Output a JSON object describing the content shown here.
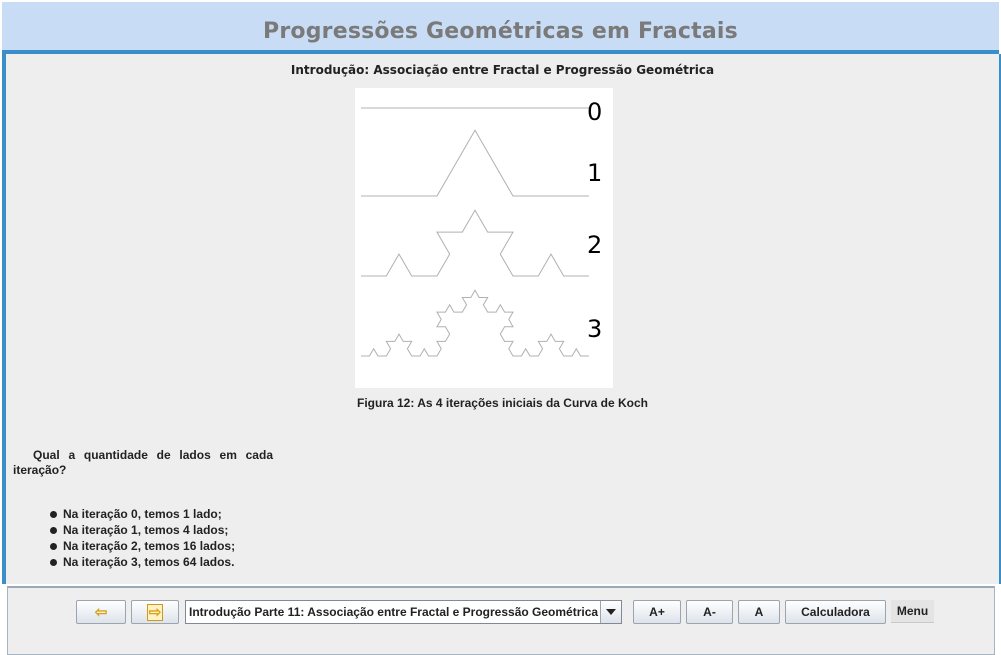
{
  "header": {
    "title": "Progressões Geométricas em Fractais"
  },
  "main": {
    "subtitle": "Introdução: Associação entre Fractal e Progressão Geométrica",
    "figure": {
      "iteration_labels": [
        "0",
        "1",
        "2",
        "3"
      ],
      "caption": "Figura 12: As 4 iterações iniciais da Curva de Koch"
    },
    "question": "Qual a quantidade de lados em cada iteração?",
    "answers": [
      "Na iteração 0, temos 1 lado;",
      "Na iteração 1, temos 4 lados;",
      "Na iteração 2, temos 16 lados;",
      "Na iteração 3, temos 64 lados."
    ]
  },
  "toolbar": {
    "prev_icon": "arrow-left-icon",
    "next_icon": "arrow-right-icon",
    "section_select": "Introdução Parte 11: Associação entre Fractal e Progressão Geométrica",
    "font_increase": "A+",
    "font_decrease": "A-",
    "font_reset": "A",
    "calculator": "Calculadora",
    "menu": "Menu"
  },
  "colors": {
    "header_bg": "#c8ddf5",
    "frame_accent": "#3b8fc9",
    "title_text": "#7a7a7a",
    "arrow_icon": "#d7a31a"
  }
}
